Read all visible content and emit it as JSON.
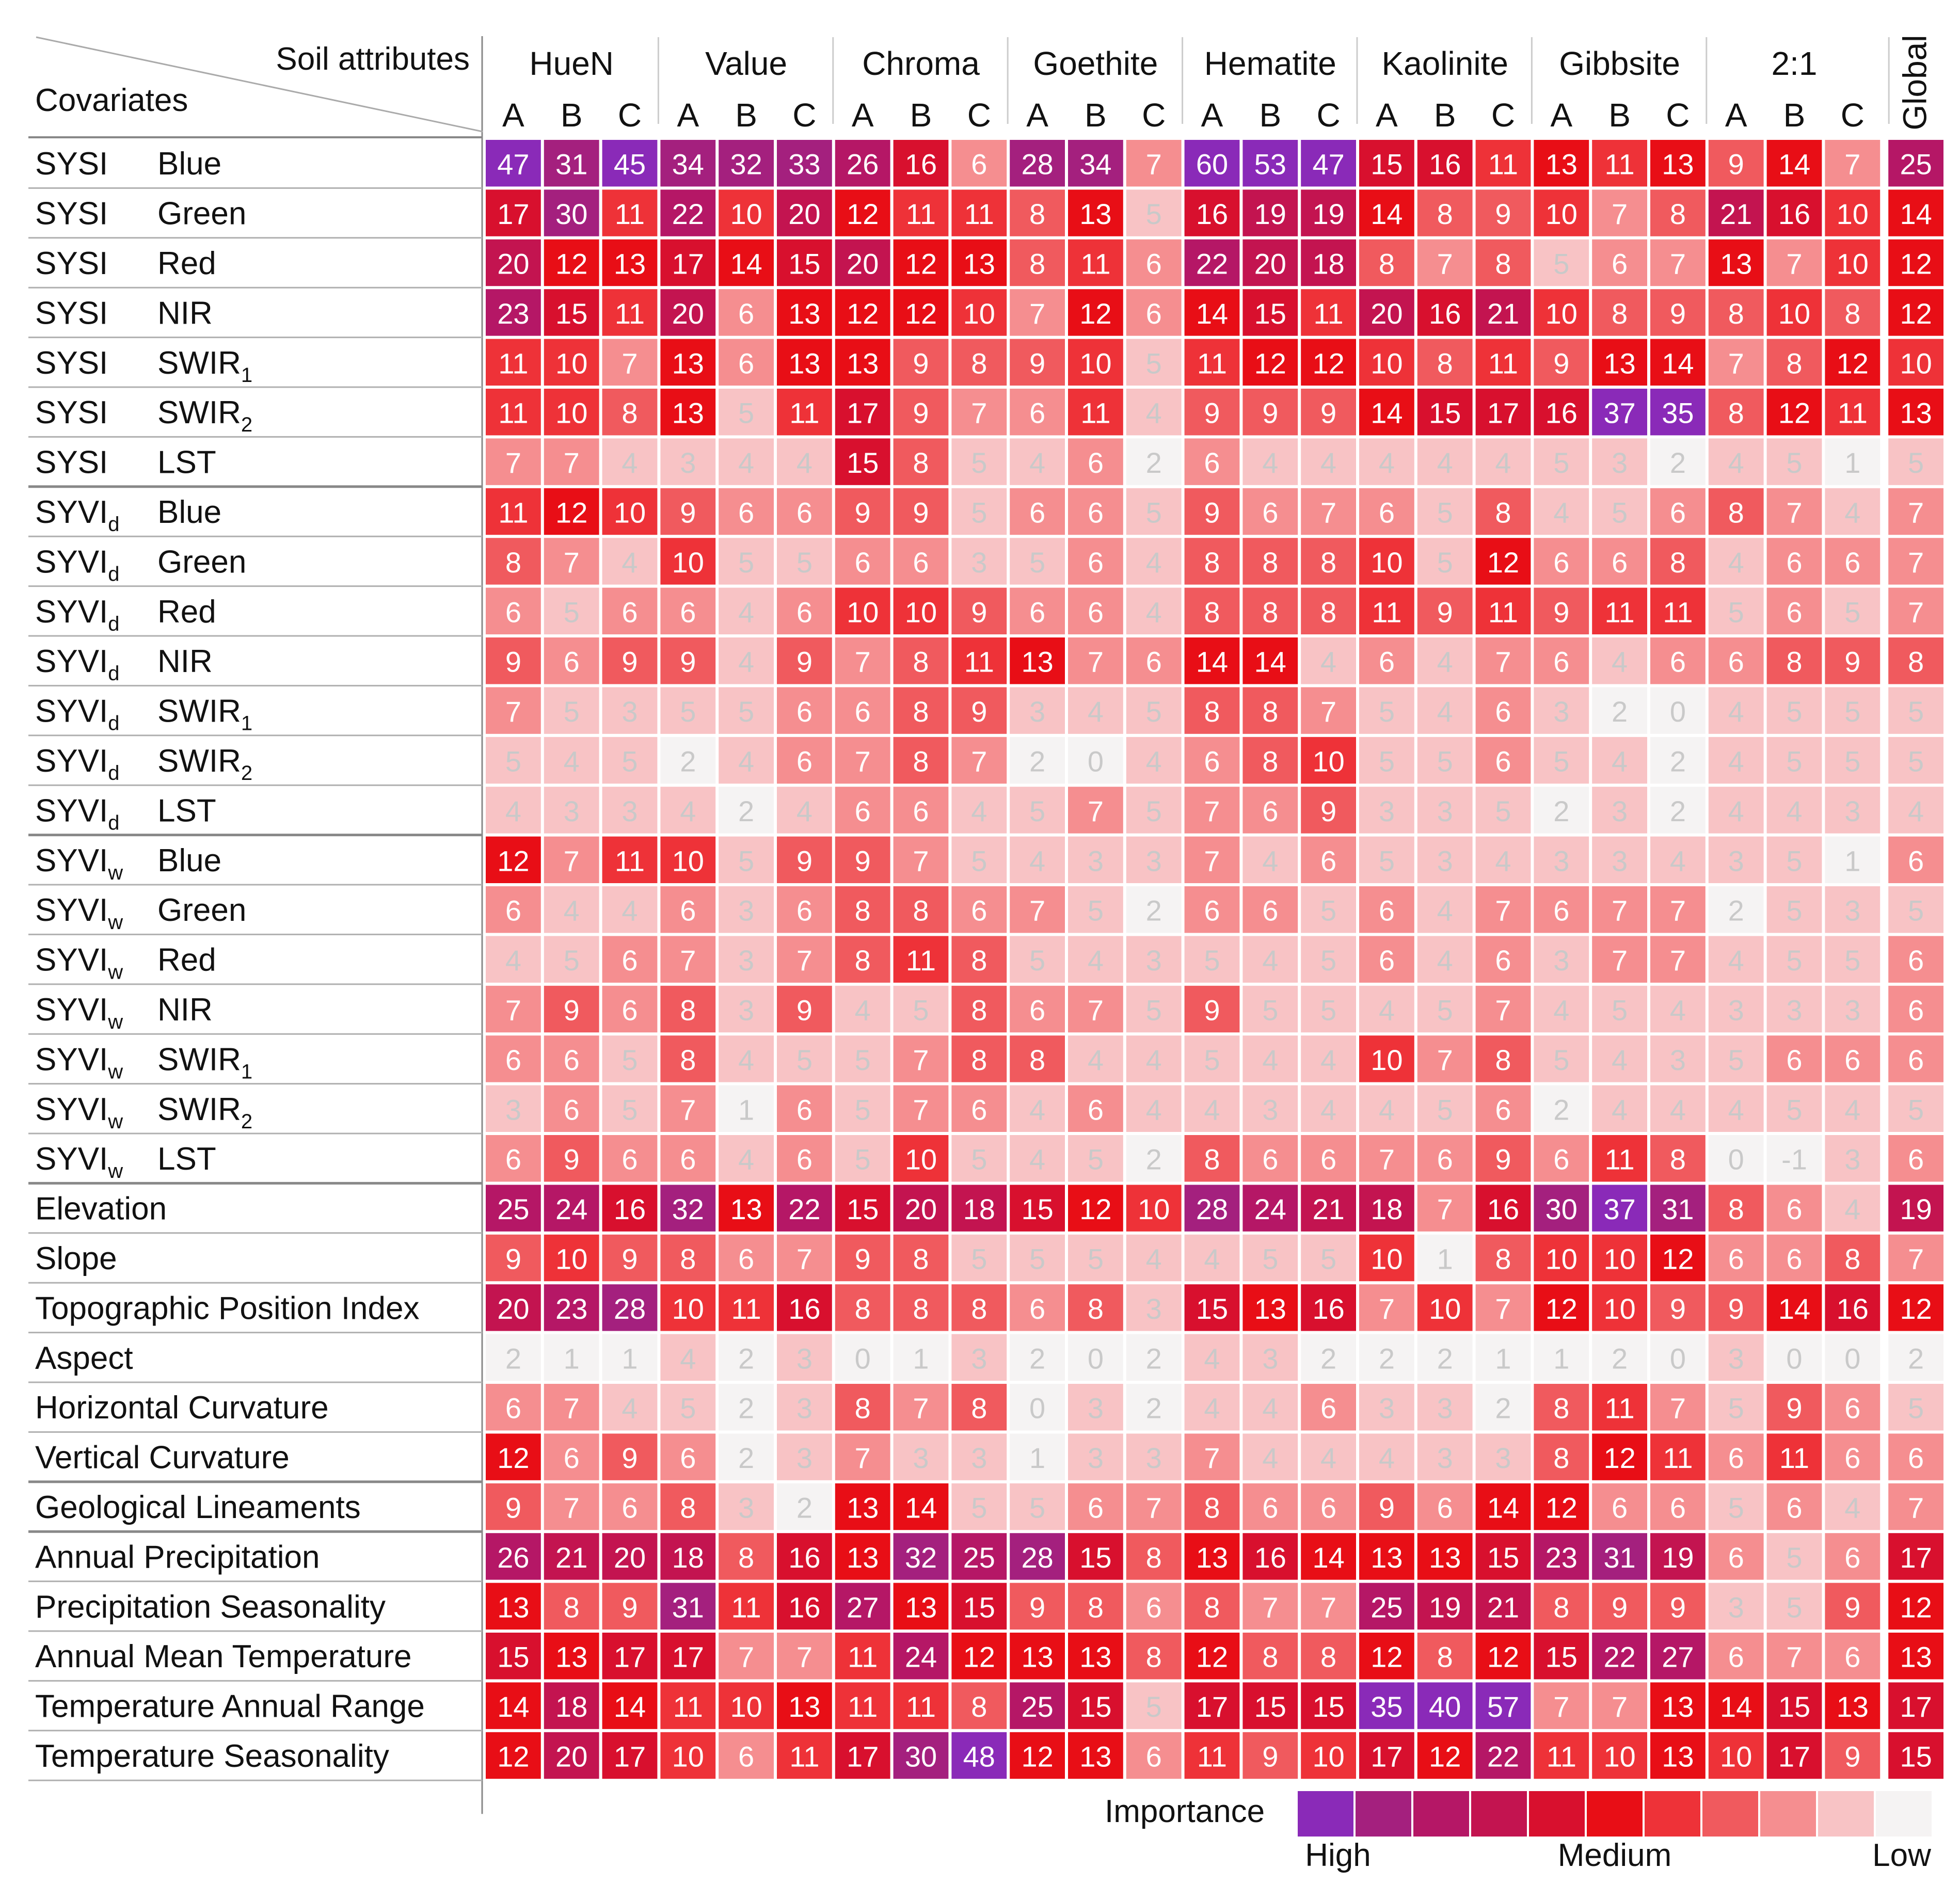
{
  "chart_data": {
    "type": "heatmap",
    "title": "",
    "corner_top_label": "Soil attributes",
    "corner_bottom_label": "Covariates",
    "attributes": [
      {
        "name": "HueN",
        "subs": [
          "A",
          "B",
          "C"
        ]
      },
      {
        "name": "Value",
        "subs": [
          "A",
          "B",
          "C"
        ]
      },
      {
        "name": "Chroma",
        "subs": [
          "A",
          "B",
          "C"
        ]
      },
      {
        "name": "Goethite",
        "subs": [
          "A",
          "B",
          "C"
        ]
      },
      {
        "name": "Hematite",
        "subs": [
          "A",
          "B",
          "C"
        ]
      },
      {
        "name": "Kaolinite",
        "subs": [
          "A",
          "B",
          "C"
        ]
      },
      {
        "name": "Gibbsite",
        "subs": [
          "A",
          "B",
          "C"
        ]
      },
      {
        "name": "2:1",
        "subs": [
          "A",
          "B",
          "C"
        ]
      },
      {
        "name": "Global",
        "subs": []
      }
    ],
    "rows": [
      {
        "group": "SYSI",
        "group_sub": "",
        "band": "Blue",
        "band_sub": "",
        "values": [
          47,
          31,
          45,
          34,
          32,
          33,
          26,
          16,
          6,
          28,
          34,
          7,
          60,
          53,
          47,
          15,
          16,
          11,
          13,
          11,
          13,
          9,
          14,
          7,
          25
        ]
      },
      {
        "group": "SYSI",
        "group_sub": "",
        "band": "Green",
        "band_sub": "",
        "values": [
          17,
          30,
          11,
          22,
          10,
          20,
          12,
          11,
          11,
          8,
          13,
          5,
          16,
          19,
          19,
          14,
          8,
          9,
          10,
          7,
          8,
          21,
          16,
          10,
          14
        ]
      },
      {
        "group": "SYSI",
        "group_sub": "",
        "band": "Red",
        "band_sub": "",
        "values": [
          20,
          12,
          13,
          17,
          14,
          15,
          20,
          12,
          13,
          8,
          11,
          6,
          22,
          20,
          18,
          8,
          7,
          8,
          5,
          6,
          7,
          13,
          7,
          10,
          12
        ]
      },
      {
        "group": "SYSI",
        "group_sub": "",
        "band": "NIR",
        "band_sub": "",
        "values": [
          23,
          15,
          11,
          20,
          6,
          13,
          12,
          12,
          10,
          7,
          12,
          6,
          14,
          15,
          11,
          20,
          16,
          21,
          10,
          8,
          9,
          8,
          10,
          8,
          12
        ]
      },
      {
        "group": "SYSI",
        "group_sub": "",
        "band": "SWIR",
        "band_sub": "1",
        "values": [
          11,
          10,
          7,
          13,
          6,
          13,
          13,
          9,
          8,
          9,
          10,
          5,
          11,
          12,
          12,
          10,
          8,
          11,
          9,
          13,
          14,
          7,
          8,
          12,
          10
        ]
      },
      {
        "group": "SYSI",
        "group_sub": "",
        "band": "SWIR",
        "band_sub": "2",
        "values": [
          11,
          10,
          8,
          13,
          5,
          11,
          17,
          9,
          7,
          6,
          11,
          4,
          9,
          9,
          9,
          14,
          15,
          17,
          16,
          37,
          35,
          8,
          12,
          11,
          13
        ]
      },
      {
        "group": "SYSI",
        "group_sub": "",
        "band": "LST",
        "band_sub": "",
        "values": [
          7,
          7,
          4,
          3,
          4,
          4,
          15,
          8,
          5,
          4,
          6,
          2,
          6,
          4,
          4,
          4,
          4,
          4,
          5,
          3,
          2,
          4,
          5,
          1,
          5
        ]
      },
      {
        "group": "SYVI",
        "group_sub": "d",
        "band": "Blue",
        "band_sub": "",
        "values": [
          11,
          12,
          10,
          9,
          6,
          6,
          9,
          9,
          5,
          6,
          6,
          5,
          9,
          6,
          7,
          6,
          5,
          8,
          4,
          5,
          6,
          8,
          7,
          4,
          7
        ]
      },
      {
        "group": "SYVI",
        "group_sub": "d",
        "band": "Green",
        "band_sub": "",
        "values": [
          8,
          7,
          4,
          10,
          5,
          5,
          6,
          6,
          3,
          5,
          6,
          4,
          8,
          8,
          8,
          10,
          5,
          12,
          6,
          6,
          8,
          4,
          6,
          6,
          7
        ]
      },
      {
        "group": "SYVI",
        "group_sub": "d",
        "band": "Red",
        "band_sub": "",
        "values": [
          6,
          5,
          6,
          6,
          4,
          6,
          10,
          10,
          9,
          6,
          6,
          4,
          8,
          8,
          8,
          11,
          9,
          11,
          9,
          11,
          11,
          5,
          6,
          5,
          7
        ]
      },
      {
        "group": "SYVI",
        "group_sub": "d",
        "band": "NIR",
        "band_sub": "",
        "values": [
          9,
          6,
          9,
          9,
          4,
          9,
          7,
          8,
          11,
          13,
          7,
          6,
          14,
          14,
          4,
          6,
          4,
          7,
          6,
          4,
          6,
          6,
          8,
          9,
          8
        ]
      },
      {
        "group": "SYVI",
        "group_sub": "d",
        "band": "SWIR",
        "band_sub": "1",
        "values": [
          7,
          5,
          3,
          5,
          5,
          6,
          6,
          8,
          9,
          3,
          4,
          5,
          8,
          8,
          7,
          5,
          4,
          6,
          3,
          2,
          0,
          4,
          5,
          5,
          5
        ]
      },
      {
        "group": "SYVI",
        "group_sub": "d",
        "band": "SWIR",
        "band_sub": "2",
        "values": [
          5,
          4,
          5,
          2,
          4,
          6,
          7,
          8,
          7,
          2,
          0,
          4,
          6,
          8,
          10,
          5,
          5,
          6,
          5,
          4,
          2,
          4,
          5,
          5,
          5
        ]
      },
      {
        "group": "SYVI",
        "group_sub": "d",
        "band": "LST",
        "band_sub": "",
        "values": [
          4,
          3,
          3,
          4,
          2,
          4,
          6,
          6,
          4,
          5,
          7,
          5,
          7,
          6,
          9,
          3,
          3,
          5,
          2,
          3,
          2,
          4,
          4,
          3,
          4
        ]
      },
      {
        "group": "SYVI",
        "group_sub": "w",
        "band": "Blue",
        "band_sub": "",
        "values": [
          12,
          7,
          11,
          10,
          5,
          9,
          9,
          7,
          5,
          4,
          3,
          3,
          7,
          4,
          6,
          5,
          3,
          4,
          3,
          3,
          4,
          3,
          5,
          1,
          6
        ]
      },
      {
        "group": "SYVI",
        "group_sub": "w",
        "band": "Green",
        "band_sub": "",
        "values": [
          6,
          4,
          4,
          6,
          3,
          6,
          8,
          8,
          6,
          7,
          5,
          2,
          6,
          6,
          5,
          6,
          4,
          7,
          6,
          7,
          7,
          2,
          5,
          3,
          5
        ]
      },
      {
        "group": "SYVI",
        "group_sub": "w",
        "band": "Red",
        "band_sub": "",
        "values": [
          4,
          5,
          6,
          7,
          3,
          7,
          8,
          11,
          8,
          5,
          4,
          3,
          5,
          4,
          5,
          6,
          4,
          6,
          3,
          7,
          7,
          4,
          5,
          5,
          6
        ]
      },
      {
        "group": "SYVI",
        "group_sub": "w",
        "band": "NIR",
        "band_sub": "",
        "values": [
          7,
          9,
          6,
          8,
          3,
          9,
          4,
          5,
          8,
          6,
          7,
          5,
          9,
          5,
          5,
          4,
          5,
          7,
          4,
          5,
          4,
          3,
          3,
          3,
          6
        ]
      },
      {
        "group": "SYVI",
        "group_sub": "w",
        "band": "SWIR",
        "band_sub": "1",
        "values": [
          6,
          6,
          5,
          8,
          4,
          5,
          5,
          7,
          8,
          8,
          4,
          4,
          5,
          4,
          4,
          10,
          7,
          8,
          5,
          4,
          3,
          5,
          6,
          6,
          6
        ]
      },
      {
        "group": "SYVI",
        "group_sub": "w",
        "band": "SWIR",
        "band_sub": "2",
        "values": [
          3,
          6,
          5,
          7,
          1,
          6,
          5,
          7,
          6,
          4,
          6,
          4,
          4,
          3,
          4,
          4,
          5,
          6,
          2,
          4,
          4,
          4,
          5,
          4,
          5
        ]
      },
      {
        "group": "SYVI",
        "group_sub": "w",
        "band": "LST",
        "band_sub": "",
        "values": [
          6,
          9,
          6,
          6,
          4,
          6,
          5,
          10,
          5,
          4,
          5,
          2,
          8,
          6,
          6,
          7,
          6,
          9,
          6,
          11,
          8,
          0,
          -1,
          3,
          6
        ]
      },
      {
        "group": "Elevation",
        "group_sub": "",
        "band": "",
        "band_sub": "",
        "values": [
          25,
          24,
          16,
          32,
          13,
          22,
          15,
          20,
          18,
          15,
          12,
          10,
          28,
          24,
          21,
          18,
          7,
          16,
          30,
          37,
          31,
          8,
          6,
          4,
          19
        ]
      },
      {
        "group": "Slope",
        "group_sub": "",
        "band": "",
        "band_sub": "",
        "values": [
          9,
          10,
          9,
          8,
          6,
          7,
          9,
          8,
          5,
          5,
          5,
          4,
          4,
          5,
          5,
          10,
          1,
          8,
          10,
          10,
          12,
          6,
          6,
          8,
          7
        ]
      },
      {
        "group": "Topographic Position Index",
        "group_sub": "",
        "band": "",
        "band_sub": "",
        "values": [
          20,
          23,
          28,
          10,
          11,
          16,
          8,
          8,
          8,
          6,
          8,
          3,
          15,
          13,
          16,
          7,
          10,
          7,
          12,
          10,
          9,
          9,
          14,
          16,
          12
        ]
      },
      {
        "group": "Aspect",
        "group_sub": "",
        "band": "",
        "band_sub": "",
        "values": [
          2,
          1,
          1,
          4,
          2,
          3,
          0,
          1,
          3,
          2,
          0,
          2,
          4,
          3,
          2,
          2,
          2,
          1,
          1,
          2,
          0,
          3,
          0,
          0,
          2
        ]
      },
      {
        "group": "Horizontal Curvature",
        "group_sub": "",
        "band": "",
        "band_sub": "",
        "values": [
          6,
          7,
          4,
          5,
          2,
          3,
          8,
          7,
          8,
          0,
          3,
          2,
          4,
          4,
          6,
          3,
          3,
          2,
          8,
          11,
          7,
          5,
          9,
          6,
          5
        ]
      },
      {
        "group": "Vertical Curvature",
        "group_sub": "",
        "band": "",
        "band_sub": "",
        "values": [
          12,
          6,
          9,
          6,
          2,
          3,
          7,
          3,
          3,
          1,
          3,
          3,
          7,
          4,
          4,
          4,
          3,
          3,
          8,
          12,
          11,
          6,
          11,
          6,
          6
        ]
      },
      {
        "group": "Geological Lineaments",
        "group_sub": "",
        "band": "",
        "band_sub": "",
        "values": [
          9,
          7,
          6,
          8,
          3,
          2,
          13,
          14,
          5,
          5,
          6,
          7,
          8,
          6,
          6,
          9,
          6,
          14,
          12,
          6,
          6,
          5,
          6,
          4,
          7
        ]
      },
      {
        "group": "Annual Precipitation",
        "group_sub": "",
        "band": "",
        "band_sub": "",
        "values": [
          26,
          21,
          20,
          18,
          8,
          16,
          13,
          32,
          25,
          28,
          15,
          8,
          13,
          16,
          14,
          13,
          13,
          15,
          23,
          31,
          19,
          6,
          5,
          6,
          17
        ]
      },
      {
        "group": "Precipitation Seasonality",
        "group_sub": "",
        "band": "",
        "band_sub": "",
        "values": [
          13,
          8,
          9,
          31,
          11,
          16,
          27,
          13,
          15,
          9,
          8,
          6,
          8,
          7,
          7,
          25,
          19,
          21,
          8,
          9,
          9,
          3,
          5,
          9,
          12
        ]
      },
      {
        "group": "Annual Mean Temperature",
        "group_sub": "",
        "band": "",
        "band_sub": "",
        "values": [
          15,
          13,
          17,
          17,
          7,
          7,
          11,
          24,
          12,
          13,
          13,
          8,
          12,
          8,
          8,
          12,
          8,
          12,
          15,
          22,
          27,
          6,
          7,
          6,
          13
        ]
      },
      {
        "group": "Temperature Annual Range",
        "group_sub": "",
        "band": "",
        "band_sub": "",
        "values": [
          14,
          18,
          14,
          11,
          10,
          13,
          11,
          11,
          8,
          25,
          15,
          5,
          17,
          15,
          15,
          35,
          40,
          57,
          7,
          7,
          13,
          14,
          15,
          13,
          17
        ]
      },
      {
        "group": "Temperature Seasonality",
        "group_sub": "",
        "band": "",
        "band_sub": "",
        "values": [
          12,
          20,
          17,
          10,
          6,
          11,
          17,
          30,
          48,
          12,
          13,
          6,
          11,
          9,
          10,
          17,
          12,
          22,
          11,
          10,
          13,
          10,
          17,
          9,
          15
        ]
      }
    ],
    "legend": {
      "title": "Importance",
      "labels": [
        "High",
        "Medium",
        "Low"
      ],
      "colors": [
        "#8a2ab8",
        "#a4207e",
        "#b51766",
        "#c31450",
        "#d8102e",
        "#e80e16",
        "#ee3238",
        "#f05a5e",
        "#f58e90",
        "#f8c3c5",
        "#f5f3f3"
      ]
    }
  }
}
